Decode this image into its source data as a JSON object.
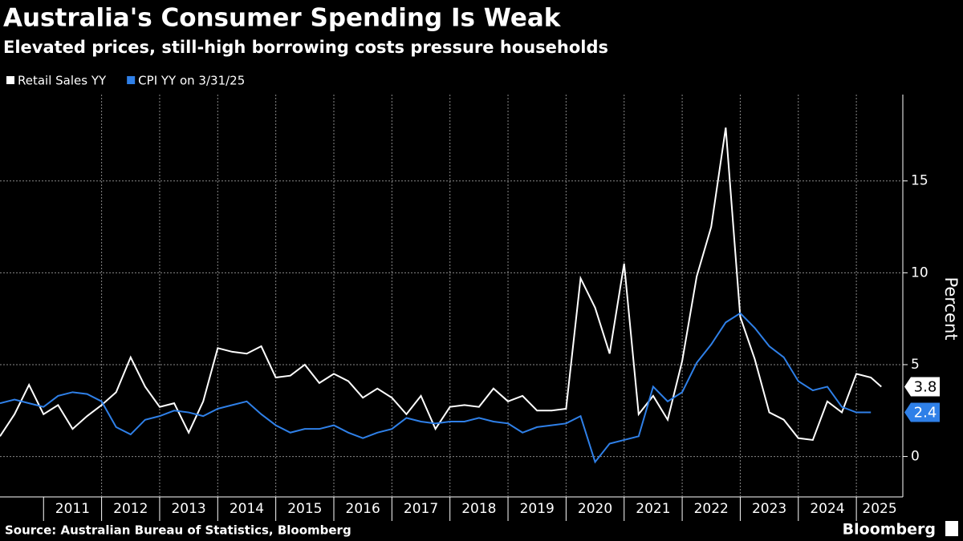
{
  "chart_data": {
    "type": "line",
    "title": "Australia's Consumer Spending Is Weak",
    "subtitle": "Elevated prices, still-high borrowing costs pressure households",
    "y_label": "Percent",
    "source": "Source: Australian Bureau of Statistics, Bloomberg",
    "brand": "Bloomberg",
    "x": [
      2010.25,
      2010.5,
      2010.75,
      2011,
      2011.25,
      2011.5,
      2011.75,
      2012,
      2012.25,
      2012.5,
      2012.75,
      2013,
      2013.25,
      2013.5,
      2013.75,
      2014,
      2014.25,
      2014.5,
      2014.75,
      2015,
      2015.25,
      2015.5,
      2015.75,
      2016,
      2016.25,
      2016.5,
      2016.75,
      2017,
      2017.25,
      2017.5,
      2017.75,
      2018,
      2018.25,
      2018.5,
      2018.75,
      2019,
      2019.25,
      2019.5,
      2019.75,
      2020,
      2020.25,
      2020.5,
      2020.75,
      2021,
      2021.25,
      2021.5,
      2021.75,
      2022,
      2022.25,
      2022.5,
      2022.75,
      2023,
      2023.25,
      2023.5,
      2023.75,
      2024,
      2024.25,
      2024.5,
      2024.75,
      2025,
      2025.25,
      2025.43
    ],
    "series": [
      {
        "name": "Retail Sales YY",
        "color": "#ffffff",
        "values": [
          1.1,
          2.3,
          3.9,
          2.3,
          2.8,
          1.5,
          2.2,
          2.8,
          3.5,
          5.4,
          3.8,
          2.7,
          2.9,
          1.3,
          3.0,
          5.9,
          5.7,
          5.6,
          6.0,
          4.3,
          4.4,
          5.0,
          4.0,
          4.5,
          4.1,
          3.2,
          3.7,
          3.2,
          2.3,
          3.3,
          1.5,
          2.7,
          2.8,
          2.7,
          3.7,
          3.0,
          3.3,
          2.5,
          2.5,
          2.6,
          9.7,
          8.1,
          5.6,
          10.5,
          2.3,
          3.3,
          2.0,
          5.2,
          9.8,
          12.5,
          17.9,
          7.6,
          5.3,
          2.4,
          2.0,
          1.0,
          0.9,
          3.0,
          2.4,
          4.5,
          4.3,
          3.8
        ]
      },
      {
        "name": "CPI YY on 3/31/25",
        "color": "#2f80e8",
        "values": [
          2.9,
          3.1,
          2.9,
          2.7,
          3.3,
          3.5,
          3.4,
          3.0,
          1.6,
          1.2,
          2.0,
          2.2,
          2.5,
          2.4,
          2.2,
          2.6,
          2.8,
          3.0,
          2.3,
          1.7,
          1.3,
          1.5,
          1.5,
          1.7,
          1.3,
          1.0,
          1.3,
          1.5,
          2.1,
          1.9,
          1.8,
          1.9,
          1.9,
          2.1,
          1.9,
          1.8,
          1.3,
          1.6,
          1.7,
          1.8,
          2.2,
          -0.3,
          0.7,
          0.9,
          1.1,
          3.8,
          3.0,
          3.5,
          5.1,
          6.1,
          7.3,
          7.8,
          7.0,
          6.0,
          5.4,
          4.1,
          3.6,
          3.8,
          2.7,
          2.4,
          2.4,
          null
        ]
      }
    ],
    "xlim": [
      2010.25,
      2025.8
    ],
    "xticks": [
      2011,
      2012,
      2013,
      2014,
      2015,
      2016,
      2017,
      2018,
      2019,
      2020,
      2021,
      2022,
      2023,
      2024,
      2025
    ],
    "ylim": [
      -2.2,
      19.7
    ],
    "yticks": [
      0,
      5,
      10,
      15
    ],
    "grid": true
  }
}
